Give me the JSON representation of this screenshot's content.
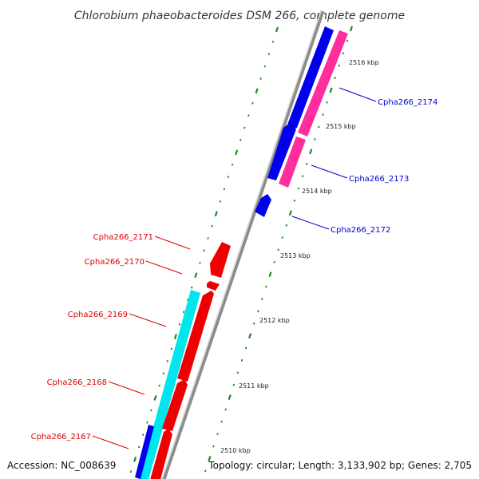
{
  "title": "Chlorobium phaeobacteroides DSM 266, complete genome",
  "footer": {
    "accession": "Accession: NC_008639",
    "topology": "Topology: circular; Length: 3,133,902 bp; Genes: 2,705"
  },
  "colors": {
    "backbone": "#8c8c8c",
    "backbone_highlight": "#d9d9d9",
    "tick": "#1f8a1f",
    "forward_gene": "#0000ee",
    "forward_label": "#0000cc",
    "forward_rna": "#ff2e9e",
    "reverse_gene": "#ee0000",
    "reverse_label": "#dd0000",
    "reverse_rna": "#00e5ee"
  },
  "position_marks": [
    "2510 kbp",
    "2511 kbp",
    "2512 kbp",
    "2513 kbp",
    "2514 kbp",
    "2515 kbp",
    "2516 kbp"
  ],
  "genes": {
    "forward": [
      {
        "label": "Cpha266_2174",
        "strand": "+"
      },
      {
        "label": "Cpha266_2173",
        "strand": "+"
      },
      {
        "label": "Cpha266_2172",
        "strand": "+"
      }
    ],
    "reverse": [
      {
        "label": "Cpha266_2171",
        "strand": "-"
      },
      {
        "label": "Cpha266_2170",
        "strand": "-"
      },
      {
        "label": "Cpha266_2169",
        "strand": "-"
      },
      {
        "label": "Cpha266_2168",
        "strand": "-"
      },
      {
        "label": "Cpha266_2167",
        "strand": "-"
      }
    ]
  }
}
